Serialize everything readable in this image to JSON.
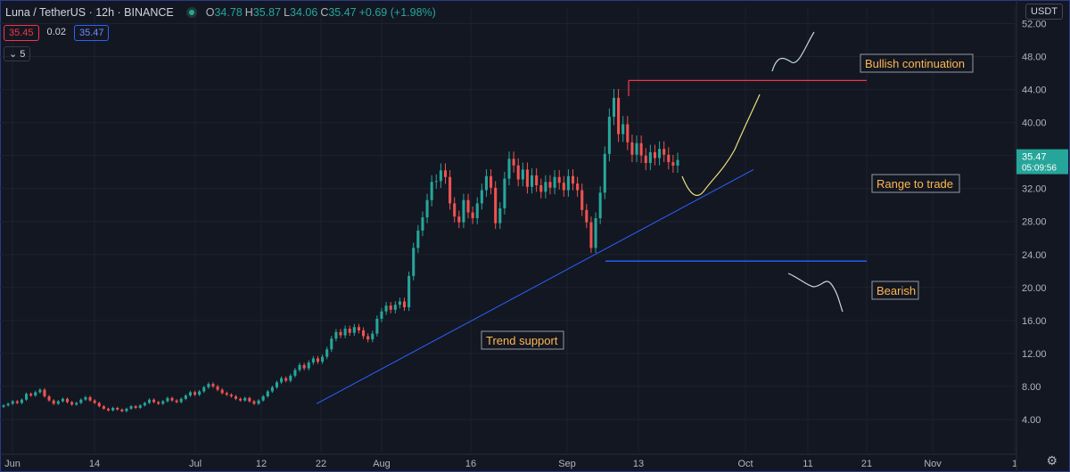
{
  "header": {
    "symbol": "Luna / TetherUS · 12h · BINANCE",
    "ohlc": [
      {
        "k": "O",
        "v": "34.78"
      },
      {
        "k": "H",
        "v": "35.87"
      },
      {
        "k": "L",
        "v": "34.06"
      },
      {
        "k": "C",
        "v": "35.47"
      }
    ],
    "change": "+0.69 (+1.98%)",
    "inputs": [
      "35.45",
      "0.02",
      "35.47"
    ],
    "collapse_label": "5",
    "currency": "USDT"
  },
  "price_badge": {
    "price": "35.47",
    "countdown": "05:09:56"
  },
  "colors": {
    "up": "#26a69a",
    "down": "#ef5350",
    "background": "#131722",
    "trend_line": "#2962ff",
    "resistance": "#f23645",
    "support": "#2962ff",
    "label_text": "#ffb74d",
    "yellow_path": "#e8e07a",
    "white_path": "#c6d6dc"
  },
  "chart_data": {
    "type": "candlestick",
    "title": "Luna / TetherUS · 12h · BINANCE",
    "ylim": [
      0,
      54
    ],
    "y_ticks": [
      "4.00",
      "8.00",
      "12.00",
      "16.00",
      "20.00",
      "24.00",
      "28.00",
      "32.00",
      "36.00",
      "40.00",
      "44.00",
      "48.00",
      "52.00"
    ],
    "x_ticks": [
      "Jun",
      "14",
      "Jul",
      "12",
      "22",
      "Aug",
      "16",
      "Sep",
      "13",
      "Oct",
      "11",
      "21",
      "Nov",
      "1"
    ],
    "last_price": 35.47,
    "closes": [
      5.7,
      5.9,
      6.2,
      6.0,
      6.4,
      7.1,
      6.9,
      7.3,
      7.6,
      6.8,
      6.3,
      5.9,
      6.2,
      6.5,
      6.1,
      5.8,
      6.0,
      6.4,
      6.7,
      6.3,
      6.0,
      5.6,
      5.3,
      5.1,
      5.4,
      5.2,
      5.0,
      5.3,
      5.6,
      5.4,
      5.7,
      6.0,
      6.4,
      6.1,
      5.9,
      6.2,
      6.6,
      6.3,
      6.1,
      6.5,
      6.9,
      7.3,
      7.0,
      7.4,
      7.9,
      8.3,
      8.0,
      7.6,
      7.2,
      7.0,
      6.8,
      6.5,
      6.3,
      6.6,
      6.2,
      5.9,
      6.3,
      6.8,
      7.4,
      7.9,
      8.5,
      9.0,
      8.7,
      9.3,
      10.0,
      10.6,
      10.2,
      10.9,
      11.4,
      11.0,
      11.6,
      12.5,
      13.8,
      14.6,
      14.2,
      15.0,
      14.5,
      15.2,
      14.8,
      14.1,
      13.7,
      14.4,
      16.2,
      17.1,
      17.8,
      17.3,
      17.9,
      18.3,
      17.6,
      21.4,
      24.8,
      26.9,
      28.5,
      30.6,
      32.8,
      32.9,
      34.2,
      33.4,
      30.2,
      28.6,
      27.9,
      30.6,
      29.1,
      28.4,
      30.2,
      31.8,
      33.5,
      32.1,
      27.8,
      29.6,
      33.2,
      35.6,
      34.8,
      33.1,
      34.3,
      32.2,
      33.6,
      32.4,
      31.6,
      32.8,
      32.1,
      33.4,
      32.7,
      31.8,
      33.5,
      32.6,
      31.8,
      29.4,
      27.9,
      24.8,
      28.4,
      31.5,
      36.2,
      40.7,
      43.0,
      38.6,
      39.8,
      37.6,
      36.1,
      37.5,
      36.0,
      35.1,
      36.4,
      35.7,
      36.8,
      36.1,
      35.2,
      34.78,
      35.47
    ],
    "annotations": [
      {
        "text": "Bullish continuation",
        "kind": "label"
      },
      {
        "text": "Range to trade",
        "kind": "label"
      },
      {
        "text": "Bearish",
        "kind": "label"
      },
      {
        "text": "Trend support",
        "kind": "label"
      }
    ],
    "levels": {
      "resistance": 45.1,
      "support": 23.2
    },
    "trendline": {
      "from_price": 5.9,
      "to_price": 34.3
    }
  }
}
